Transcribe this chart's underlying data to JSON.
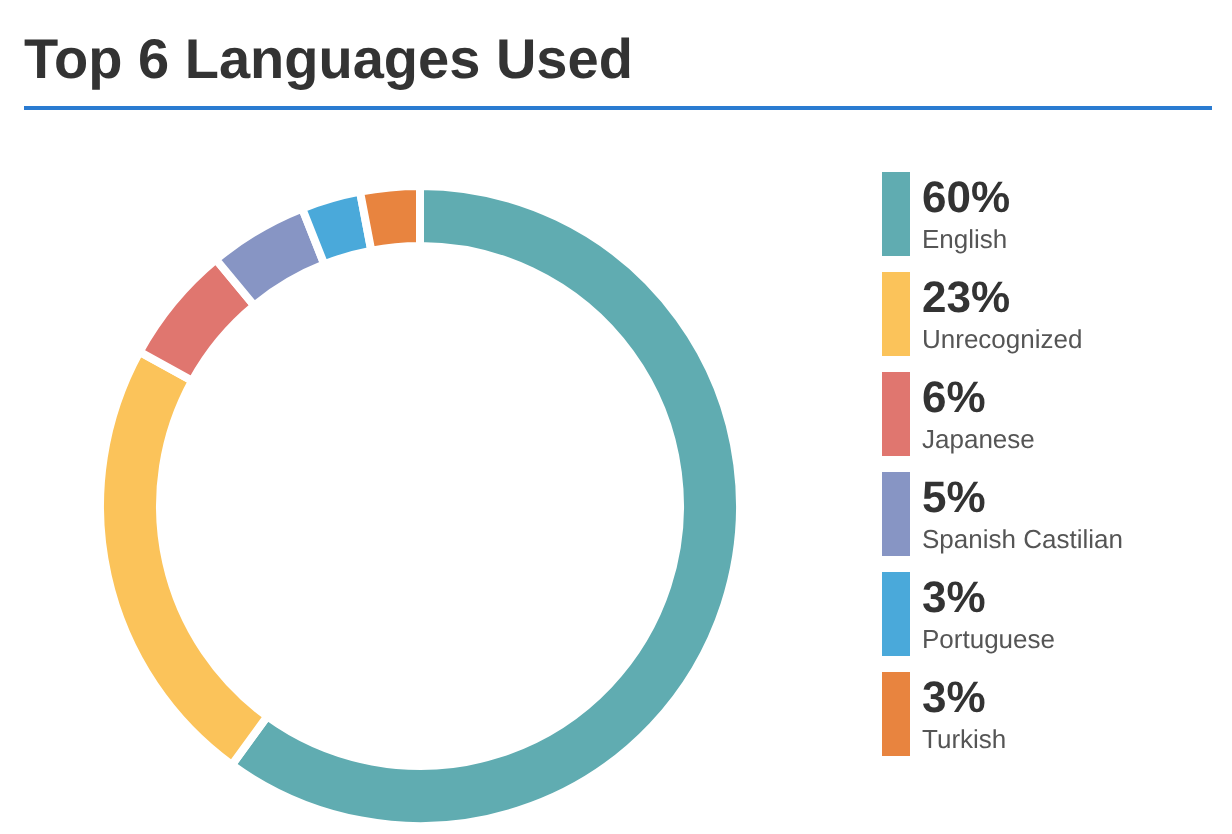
{
  "chart_data": {
    "type": "donut",
    "title": "Top 6 Languages Used",
    "categories": [
      "English",
      "Unrecognized",
      "Japanese",
      "Spanish Castilian",
      "Portuguese",
      "Turkish"
    ],
    "values": [
      60,
      23,
      6,
      5,
      3,
      3
    ],
    "value_labels": [
      "60%",
      "23%",
      "6%",
      "5%",
      "3%",
      "3%"
    ],
    "colors": [
      "#60acb1",
      "#fbc35a",
      "#e0766f",
      "#8795c4",
      "#4aa9da",
      "#e8843f"
    ],
    "legend": "right"
  }
}
